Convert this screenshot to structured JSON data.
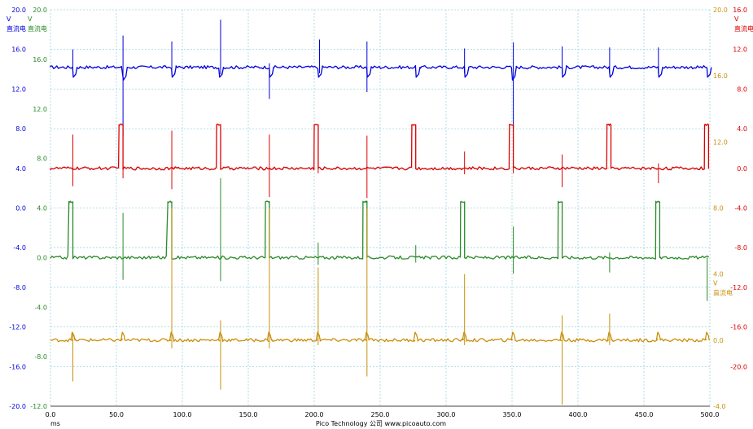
{
  "chart_data": {
    "type": "line",
    "footer": "Pico Technology 公司  www.picoauto.com",
    "grid": true,
    "x_axis": {
      "unit": "ms",
      "range": [
        0,
        500
      ],
      "ticks": [
        "0.0",
        "50.0",
        "100.0",
        "150.0",
        "200.0",
        "250.0",
        "300.0",
        "350.0",
        "400.0",
        "450.0",
        "500.0"
      ]
    },
    "axes": [
      {
        "id": "blue",
        "color": "#0000dd",
        "side": "left",
        "unit": "V",
        "label": "直流电",
        "range": [
          -20,
          20
        ],
        "ticks": [
          "20.0",
          "16.0",
          "12.0",
          "8.0",
          "4.0",
          "0.0",
          "-4.0",
          "-8.0",
          "-12.0",
          "-16.0",
          "-20.0"
        ]
      },
      {
        "id": "green",
        "color": "#2a8a2a",
        "side": "left",
        "unit": "V",
        "label": "直流电",
        "range": [
          -12,
          20
        ],
        "ticks": [
          "20.0",
          "16.0",
          "12.0",
          "8.0",
          "4.0",
          "0.0",
          "-4.0",
          "-8.0",
          "-12.0"
        ]
      },
      {
        "id": "red",
        "color": "#dd0000",
        "side": "right",
        "unit": "V",
        "label": "直流电",
        "range": [
          -24,
          16
        ],
        "ticks": [
          "16.0",
          "12.0",
          "8.0",
          "4.0",
          "0.0",
          "-4.0",
          "-8.0",
          "-12.0",
          "-16.0",
          "-20.0"
        ]
      },
      {
        "id": "gold",
        "color": "#c8900a",
        "side": "right",
        "unit": "V",
        "label": "直流电",
        "range": [
          -4,
          20
        ],
        "ticks": [
          "20.0",
          "16.0",
          "12.0",
          "8.0",
          "4.0",
          "0.0",
          "-4.0"
        ]
      }
    ],
    "series": [
      {
        "axis": "blue",
        "baseline": 14.2,
        "dips": [
          {
            "x": 17,
            "y": 13.2
          },
          {
            "x": 55,
            "y": 12.9
          },
          {
            "x": 92,
            "y": 13.2
          },
          {
            "x": 128,
            "y": 13.2
          },
          {
            "x": 166,
            "y": 13.2
          },
          {
            "x": 203,
            "y": 13.2
          },
          {
            "x": 240,
            "y": 13.2
          },
          {
            "x": 277,
            "y": 13.2
          },
          {
            "x": 314,
            "y": 13.2
          },
          {
            "x": 350,
            "y": 12.9
          },
          {
            "x": 388,
            "y": 13.2
          },
          {
            "x": 424,
            "y": 13.2
          },
          {
            "x": 461,
            "y": 13.2
          },
          {
            "x": 498,
            "y": 13.2
          }
        ],
        "spikes": [
          {
            "x": 17,
            "hi": 16.0,
            "lo": 13.6
          },
          {
            "x": 55,
            "hi": 17.4,
            "lo": 7.2
          },
          {
            "x": 92,
            "hi": 16.8,
            "lo": 13.5
          },
          {
            "x": 129,
            "hi": 19.0,
            "lo": 13.5
          },
          {
            "x": 166,
            "hi": 14.6,
            "lo": 11.0
          },
          {
            "x": 204,
            "hi": 17.0,
            "lo": 13.6
          },
          {
            "x": 240,
            "hi": 16.8,
            "lo": 11.7
          },
          {
            "x": 314,
            "hi": 16.1,
            "lo": 13.6
          },
          {
            "x": 351,
            "hi": 16.7,
            "lo": 8.0
          },
          {
            "x": 388,
            "hi": 16.3,
            "lo": 13.6
          },
          {
            "x": 424,
            "hi": 16.2,
            "lo": 13.6
          },
          {
            "x": 461,
            "hi": 16.2,
            "lo": 13.6
          }
        ]
      },
      {
        "axis": "red",
        "baseline": 0.0,
        "pulses": [
          {
            "start": 52,
            "end": 55,
            "high": 4.4
          },
          {
            "start": 126,
            "end": 129,
            "high": 4.4
          },
          {
            "start": 200,
            "end": 203,
            "high": 4.4
          },
          {
            "start": 274,
            "end": 277,
            "high": 4.4
          },
          {
            "start": 348,
            "end": 351,
            "high": 4.4
          },
          {
            "start": 422,
            "end": 425,
            "high": 4.4
          },
          {
            "start": 496,
            "end": 499,
            "high": 4.4
          }
        ],
        "spikes": [
          {
            "x": 17,
            "hi": 3.4,
            "lo": -1.8
          },
          {
            "x": 55,
            "hi": 0.0,
            "lo": -1.0
          },
          {
            "x": 92,
            "hi": 3.8,
            "lo": -2.1
          },
          {
            "x": 166,
            "hi": 3.4,
            "lo": -2.9
          },
          {
            "x": 203,
            "hi": 0.0,
            "lo": -0.5
          },
          {
            "x": 240,
            "hi": 3.3,
            "lo": -3.0
          },
          {
            "x": 314,
            "hi": 1.7,
            "lo": -0.6
          },
          {
            "x": 351,
            "hi": 0.0,
            "lo": -0.5
          },
          {
            "x": 388,
            "hi": 1.4,
            "lo": -1.9
          },
          {
            "x": 461,
            "hi": 0.5,
            "lo": -1.5
          }
        ]
      },
      {
        "axis": "green",
        "baseline": 0.0,
        "pulses": [
          {
            "start": 14,
            "end": 17,
            "high": 4.5
          },
          {
            "start": 89,
            "end": 92,
            "high": 4.5
          },
          {
            "start": 163,
            "end": 166,
            "high": 4.5
          },
          {
            "start": 237,
            "end": 240,
            "high": 4.5
          },
          {
            "start": 311,
            "end": 314,
            "high": 4.5
          },
          {
            "start": 385,
            "end": 388,
            "high": 4.5
          },
          {
            "start": 459,
            "end": 462,
            "high": 4.5
          }
        ],
        "spikes": [
          {
            "x": 55,
            "hi": 3.6,
            "lo": -1.8
          },
          {
            "x": 129,
            "hi": 6.4,
            "lo": -1.9
          },
          {
            "x": 203,
            "hi": 1.2,
            "lo": -0.6
          },
          {
            "x": 277,
            "hi": 1.0,
            "lo": -0.4
          },
          {
            "x": 351,
            "hi": 2.5,
            "lo": -1.3
          },
          {
            "x": 424,
            "hi": 0.4,
            "lo": -1.2
          },
          {
            "x": 498,
            "hi": 0.0,
            "lo": -3.5
          }
        ]
      },
      {
        "axis": "gold",
        "baseline": 0.0,
        "bumps": [
          17,
          55,
          92,
          129,
          166,
          203,
          240,
          277,
          314,
          351,
          388,
          424,
          461,
          498
        ],
        "spikes": [
          {
            "x": 17,
            "hi": 0.4,
            "lo": -2.5
          },
          {
            "x": 92,
            "hi": 8.0,
            "lo": -0.5
          },
          {
            "x": 129,
            "hi": 1.2,
            "lo": -3.0
          },
          {
            "x": 166,
            "hi": 8.0,
            "lo": -0.5
          },
          {
            "x": 240,
            "hi": 8.0,
            "lo": -2.2
          },
          {
            "x": 203,
            "hi": 4.4,
            "lo": -0.3
          },
          {
            "x": 314,
            "hi": 4.0,
            "lo": -0.3
          },
          {
            "x": 388,
            "hi": 1.5,
            "lo": -3.9
          },
          {
            "x": 424,
            "hi": 1.6,
            "lo": -0.3
          }
        ]
      }
    ]
  }
}
